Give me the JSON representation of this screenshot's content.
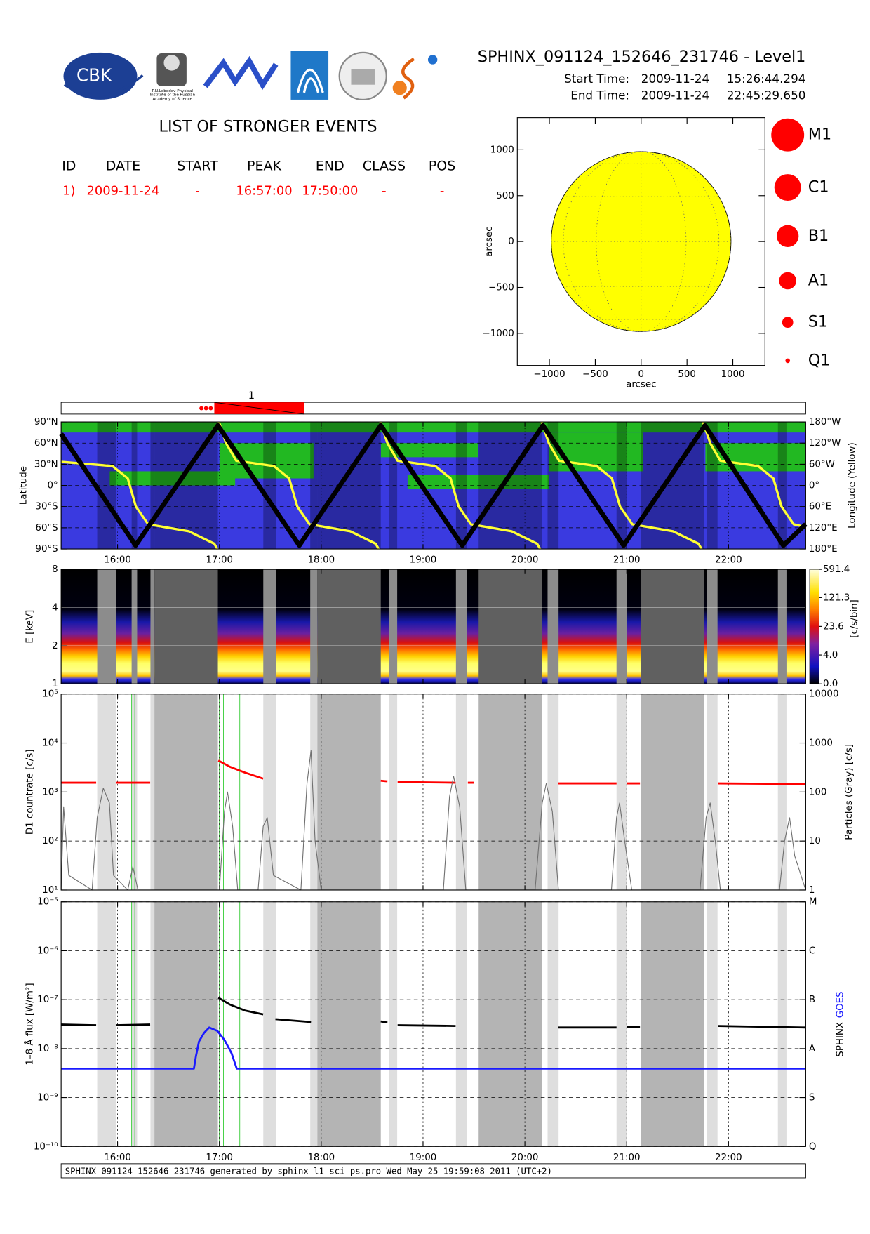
{
  "header": {
    "title": "SPHINX_091124_152646_231746 - Level1",
    "start_label": "Start Time:",
    "start_date": "2009-11-24",
    "start_time": "15:26:44.294",
    "end_label": "End Time:",
    "end_date": "2009-11-24",
    "end_time": "22:45:29.650",
    "logos": [
      "CBK",
      "P.N.Lebedev Physical",
      "Institute of the Russian",
      "Academy of Science"
    ]
  },
  "events": {
    "title": "LIST OF STRONGER EVENTS",
    "columns": [
      "ID",
      "DATE",
      "START",
      "PEAK",
      "END",
      "CLASS",
      "POS"
    ],
    "rows": [
      [
        "1)",
        "2009-11-24",
        "-",
        "16:57:00",
        "17:50:00",
        "-",
        "-"
      ]
    ]
  },
  "chart_data": [
    {
      "type": "solar_disk",
      "xlim": [
        -1350,
        1350
      ],
      "ylim": [
        -1350,
        1350
      ],
      "xticks": [
        {
          "value": -1000,
          "label": "−1000"
        },
        {
          "value": -500,
          "label": "−500"
        },
        0,
        500,
        1000
      ],
      "yticks": [
        {
          "value": -1000,
          "label": "−1000"
        },
        {
          "value": -500,
          "label": "−500"
        },
        0,
        500,
        1000
      ],
      "xlabel": "arcsec",
      "ylabel": "arcsec",
      "solar_radius": 980,
      "color": "#ffff00",
      "legend": [
        "M1",
        "C1",
        "B1",
        "A1",
        "S1",
        "Q1"
      ],
      "legend_color": "#ff0000"
    },
    {
      "type": "timeline",
      "xlim": [
        15.4457,
        22.7582
      ],
      "events": [
        {
          "label": "1",
          "start": 16.95,
          "end": 17.833
        }
      ],
      "precursors": [
        16.823,
        16.869,
        16.915
      ],
      "color": "#ff0000"
    },
    {
      "type": "orbit",
      "xlim": [
        15.4457,
        22.7582
      ],
      "xticks": [
        {
          "value": 16,
          "label": "16:00"
        },
        {
          "value": 17,
          "label": "17:00"
        },
        {
          "value": 18,
          "label": "18:00"
        },
        {
          "value": 19,
          "label": "19:00"
        },
        {
          "value": 20,
          "label": "20:00"
        },
        {
          "value": 21,
          "label": "21:00"
        },
        {
          "value": 22,
          "label": "22:00"
        }
      ],
      "ylim": [
        -90,
        90
      ],
      "yticks": [
        {
          "value": 90,
          "label": "90°N"
        },
        {
          "value": 60,
          "label": "60°N"
        },
        {
          "value": 30,
          "label": "30°N"
        },
        {
          "value": 0,
          "label": "0°"
        },
        {
          "value": -30,
          "label": "30°S"
        },
        {
          "value": -60,
          "label": "60°S"
        },
        {
          "value": -90,
          "label": "90°S"
        }
      ],
      "y2lim": [
        180,
        -180
      ],
      "y2ticks": [
        {
          "value": -180,
          "label": "180°W"
        },
        {
          "value": -120,
          "label": "120°W"
        },
        {
          "value": -60,
          "label": "60°W"
        },
        {
          "value": 0,
          "label": "0°"
        },
        {
          "value": 60,
          "label": "60°E"
        },
        {
          "value": 120,
          "label": "120°E"
        },
        {
          "value": 180,
          "label": "180°E"
        }
      ],
      "ylabel": "Latitude",
      "y2label": "Longitude (Yellow)",
      "series": [
        {
          "color": "#000000",
          "x": [
            15.446,
            16.177,
            16.985,
            17.785,
            18.585,
            19.385,
            20.177,
            20.969,
            21.769,
            22.538,
            22.758
          ],
          "values": [
            73,
            -85,
            85,
            -85,
            85,
            -85,
            85,
            -85,
            85,
            -85,
            -55
          ]
        },
        {
          "color": "#ffff33",
          "axis": "y2",
          "x": [
            15.446,
            15.95,
            16.1,
            16.18,
            16.3,
            16.7,
            16.95,
            16.98,
            null,
            16.995,
            17.065,
            17.165,
            17.535,
            17.685,
            17.765,
            17.885,
            18.285,
            18.535,
            18.565,
            null,
            18.58,
            18.65,
            18.75,
            19.12,
            19.27,
            19.35,
            19.47,
            19.87,
            20.12,
            20.15,
            null,
            20.165,
            20.235,
            20.335,
            20.705,
            20.855,
            20.935,
            21.055,
            21.455,
            21.705,
            21.735,
            null,
            21.75,
            21.82,
            21.92,
            22.29,
            22.44,
            22.52,
            22.64,
            22.758
          ],
          "values": [
            -67,
            -55,
            -20,
            60,
            110,
            130,
            165,
            180,
            null,
            -180,
            -120,
            -70,
            -55,
            -20,
            60,
            110,
            130,
            165,
            180,
            null,
            -180,
            -120,
            -70,
            -55,
            -20,
            60,
            110,
            130,
            165,
            180,
            null,
            -180,
            -120,
            -70,
            -55,
            -20,
            60,
            110,
            130,
            165,
            180,
            null,
            -180,
            -120,
            -70,
            -55,
            -20,
            60,
            110,
            118
          ]
        }
      ]
    },
    {
      "type": "spectrogram",
      "xlim": [
        15.4457,
        22.7582
      ],
      "xticks": [
        16,
        17,
        18,
        19,
        20,
        21,
        22
      ],
      "log_y": true,
      "ylim": [
        1,
        8
      ],
      "yticks": [
        1,
        2,
        4,
        8
      ],
      "ylabel": "E [keV]",
      "colorbar": {
        "label": "[c/s/bin]",
        "clim": [
          0,
          591.4
        ],
        "scale": "log1p",
        "ticks": [
          {
            "value": 0,
            "label": "0.0"
          },
          {
            "value": 4,
            "label": "4.0"
          },
          23.6,
          121.3,
          591.4
        ]
      }
    },
    {
      "type": "lightcurve",
      "xlim": [
        15.4457,
        22.7582
      ],
      "xticks": [
        16,
        17,
        18,
        19,
        20,
        21,
        22
      ],
      "log_y": true,
      "ylim": [
        10,
        100000
      ],
      "yticks": [
        {
          "value": 10,
          "label": "10¹"
        },
        {
          "value": 100,
          "label": "10²"
        },
        {
          "value": 1000,
          "label": "10³"
        },
        {
          "value": 10000,
          "label": "10⁴"
        },
        {
          "value": 100000,
          "label": "10⁵"
        }
      ],
      "y2lim": [
        1,
        10000
      ],
      "y2ticks": [
        1,
        10,
        100,
        1000,
        10000
      ],
      "ylabel": "D1 countrate [c/s]",
      "y2label": "Particles (Gray) [c/s]",
      "grid": true,
      "bands": {
        "dark": [
          [
            16.362,
            16.985
          ],
          [
            17.962,
            18.585
          ],
          [
            19.546,
            20.169
          ],
          [
            21.138,
            21.762
          ]
        ],
        "light": [
          [
            15.8,
            15.985
          ],
          [
            16.138,
            16.192
          ],
          [
            16.323,
            16.362
          ],
          [
            17.431,
            17.554
          ],
          [
            17.892,
            17.962
          ],
          [
            18.669,
            18.746
          ],
          [
            19.323,
            19.431
          ],
          [
            20.223,
            20.331
          ],
          [
            20.9,
            21.0
          ],
          [
            21.785,
            21.892
          ],
          [
            22.485,
            22.569
          ]
        ]
      },
      "vlines": [
        16.138,
        16.169,
        17.0,
        17.04,
        17.123,
        17.2
      ],
      "vline_color": "#33cc33",
      "series": [
        {
          "color": "#ff0000",
          "x": [
            15.446,
            15.79,
            null,
            15.985,
            16.32,
            null,
            16.99,
            17.1,
            17.25,
            17.43,
            null,
            18.585,
            18.65,
            null,
            18.75,
            19.32,
            null,
            19.44,
            19.5,
            null,
            20.33,
            20.9,
            null,
            21.0,
            21.13,
            null,
            21.9,
            22.758
          ],
          "values": [
            1550,
            1550,
            null,
            1550,
            1550,
            null,
            4400,
            3300,
            2500,
            1870,
            null,
            1700,
            1650,
            null,
            1600,
            1550,
            null,
            1550,
            1550,
            null,
            1500,
            1500,
            null,
            1500,
            1500,
            null,
            1500,
            1450
          ]
        },
        {
          "color": "#707070",
          "axis": "y2",
          "x": [
            15.446,
            15.47,
            15.52,
            15.75,
            15.8,
            15.86,
            15.92,
            15.96,
            16.1,
            16.15,
            16.2,
            17.0,
            17.05,
            17.08,
            17.13,
            17.18,
            17.38,
            17.43,
            17.47,
            17.53,
            17.8,
            17.86,
            17.9,
            17.94,
            18.0,
            19.2,
            19.26,
            19.3,
            19.36,
            19.42,
            20.1,
            20.17,
            20.21,
            20.27,
            20.33,
            20.85,
            20.9,
            20.93,
            20.98,
            21.05,
            21.72,
            21.78,
            21.82,
            21.87,
            21.92,
            22.5,
            22.55,
            22.6,
            22.65,
            22.758
          ],
          "values": [
            1,
            50,
            2,
            1,
            30,
            120,
            60,
            2,
            1,
            3,
            1,
            1,
            40,
            100,
            20,
            1,
            1,
            20,
            30,
            2,
            1,
            150,
            700,
            10,
            1,
            1,
            80,
            210,
            50,
            1,
            1,
            60,
            150,
            40,
            1,
            1,
            30,
            60,
            10,
            1,
            1,
            30,
            60,
            10,
            1,
            1,
            10,
            30,
            5,
            1
          ]
        }
      ]
    },
    {
      "type": "lightcurve",
      "xlim": [
        15.4457,
        22.7582
      ],
      "xticks": [
        {
          "value": 16,
          "label": "16:00"
        },
        {
          "value": 17,
          "label": "17:00"
        },
        {
          "value": 18,
          "label": "18:00"
        },
        {
          "value": 19,
          "label": "19:00"
        },
        {
          "value": 20,
          "label": "20:00"
        },
        {
          "value": 21,
          "label": "21:00"
        },
        {
          "value": 22,
          "label": "22:00"
        }
      ],
      "log_y": true,
      "ylim": [
        1e-10,
        1e-05
      ],
      "yticks": [
        {
          "value": 1e-10,
          "label": "10⁻¹⁰"
        },
        {
          "value": 1e-09,
          "label": "10⁻⁹"
        },
        {
          "value": 1e-08,
          "label": "10⁻⁸"
        },
        {
          "value": 1e-07,
          "label": "10⁻⁷"
        },
        {
          "value": 1e-06,
          "label": "10⁻⁶"
        },
        {
          "value": 1e-05,
          "label": "10⁻⁵"
        }
      ],
      "y2lim": [
        1e-10,
        1e-05
      ],
      "y2ticks": [
        {
          "value": 1e-10,
          "label": "Q"
        },
        {
          "value": 1e-09,
          "label": "S"
        },
        {
          "value": 1e-08,
          "label": "A"
        },
        {
          "value": 1e-07,
          "label": "B"
        },
        {
          "value": 1e-06,
          "label": "C"
        },
        {
          "value": 1e-05,
          "label": "M"
        }
      ],
      "ylabel": "1–8 Å flux [W/m²]",
      "grid": true,
      "series": [
        {
          "name": "SPHINX",
          "color": "#000000",
          "x": [
            15.446,
            15.79,
            null,
            15.985,
            16.32,
            null,
            16.99,
            17.1,
            17.25,
            17.43,
            null,
            17.55,
            17.9,
            null,
            18.585,
            18.65,
            null,
            18.75,
            19.32,
            null,
            20.33,
            20.9,
            null,
            21.0,
            21.13,
            null,
            21.9,
            22.758
          ],
          "values": [
            3.1e-08,
            3e-08,
            null,
            3e-08,
            3.1e-08,
            null,
            1.1e-07,
            8e-08,
            6e-08,
            5e-08,
            null,
            4e-08,
            3.5e-08,
            null,
            3.6e-08,
            3.4e-08,
            null,
            3e-08,
            2.9e-08,
            null,
            2.7e-08,
            2.7e-08,
            null,
            2.8e-08,
            2.8e-08,
            null,
            2.9e-08,
            2.7e-08
          ]
        },
        {
          "name": "GOES",
          "color": "#1a1aff",
          "x": [
            15.446,
            16.75,
            16.77,
            16.8,
            16.85,
            16.9,
            16.98,
            17.05,
            17.12,
            17.17,
            22.758
          ],
          "values": [
            3.9e-09,
            3.9e-09,
            7e-09,
            1.4e-08,
            2.1e-08,
            2.7e-08,
            2.3e-08,
            1.5e-08,
            8e-09,
            3.9e-09,
            3.9e-09
          ]
        }
      ]
    }
  ],
  "footer": "SPHINX_091124_152646_231746 generated by sphinx_l1_sci_ps.pro Wed May 25 19:59:08 2011 (UTC+2)"
}
